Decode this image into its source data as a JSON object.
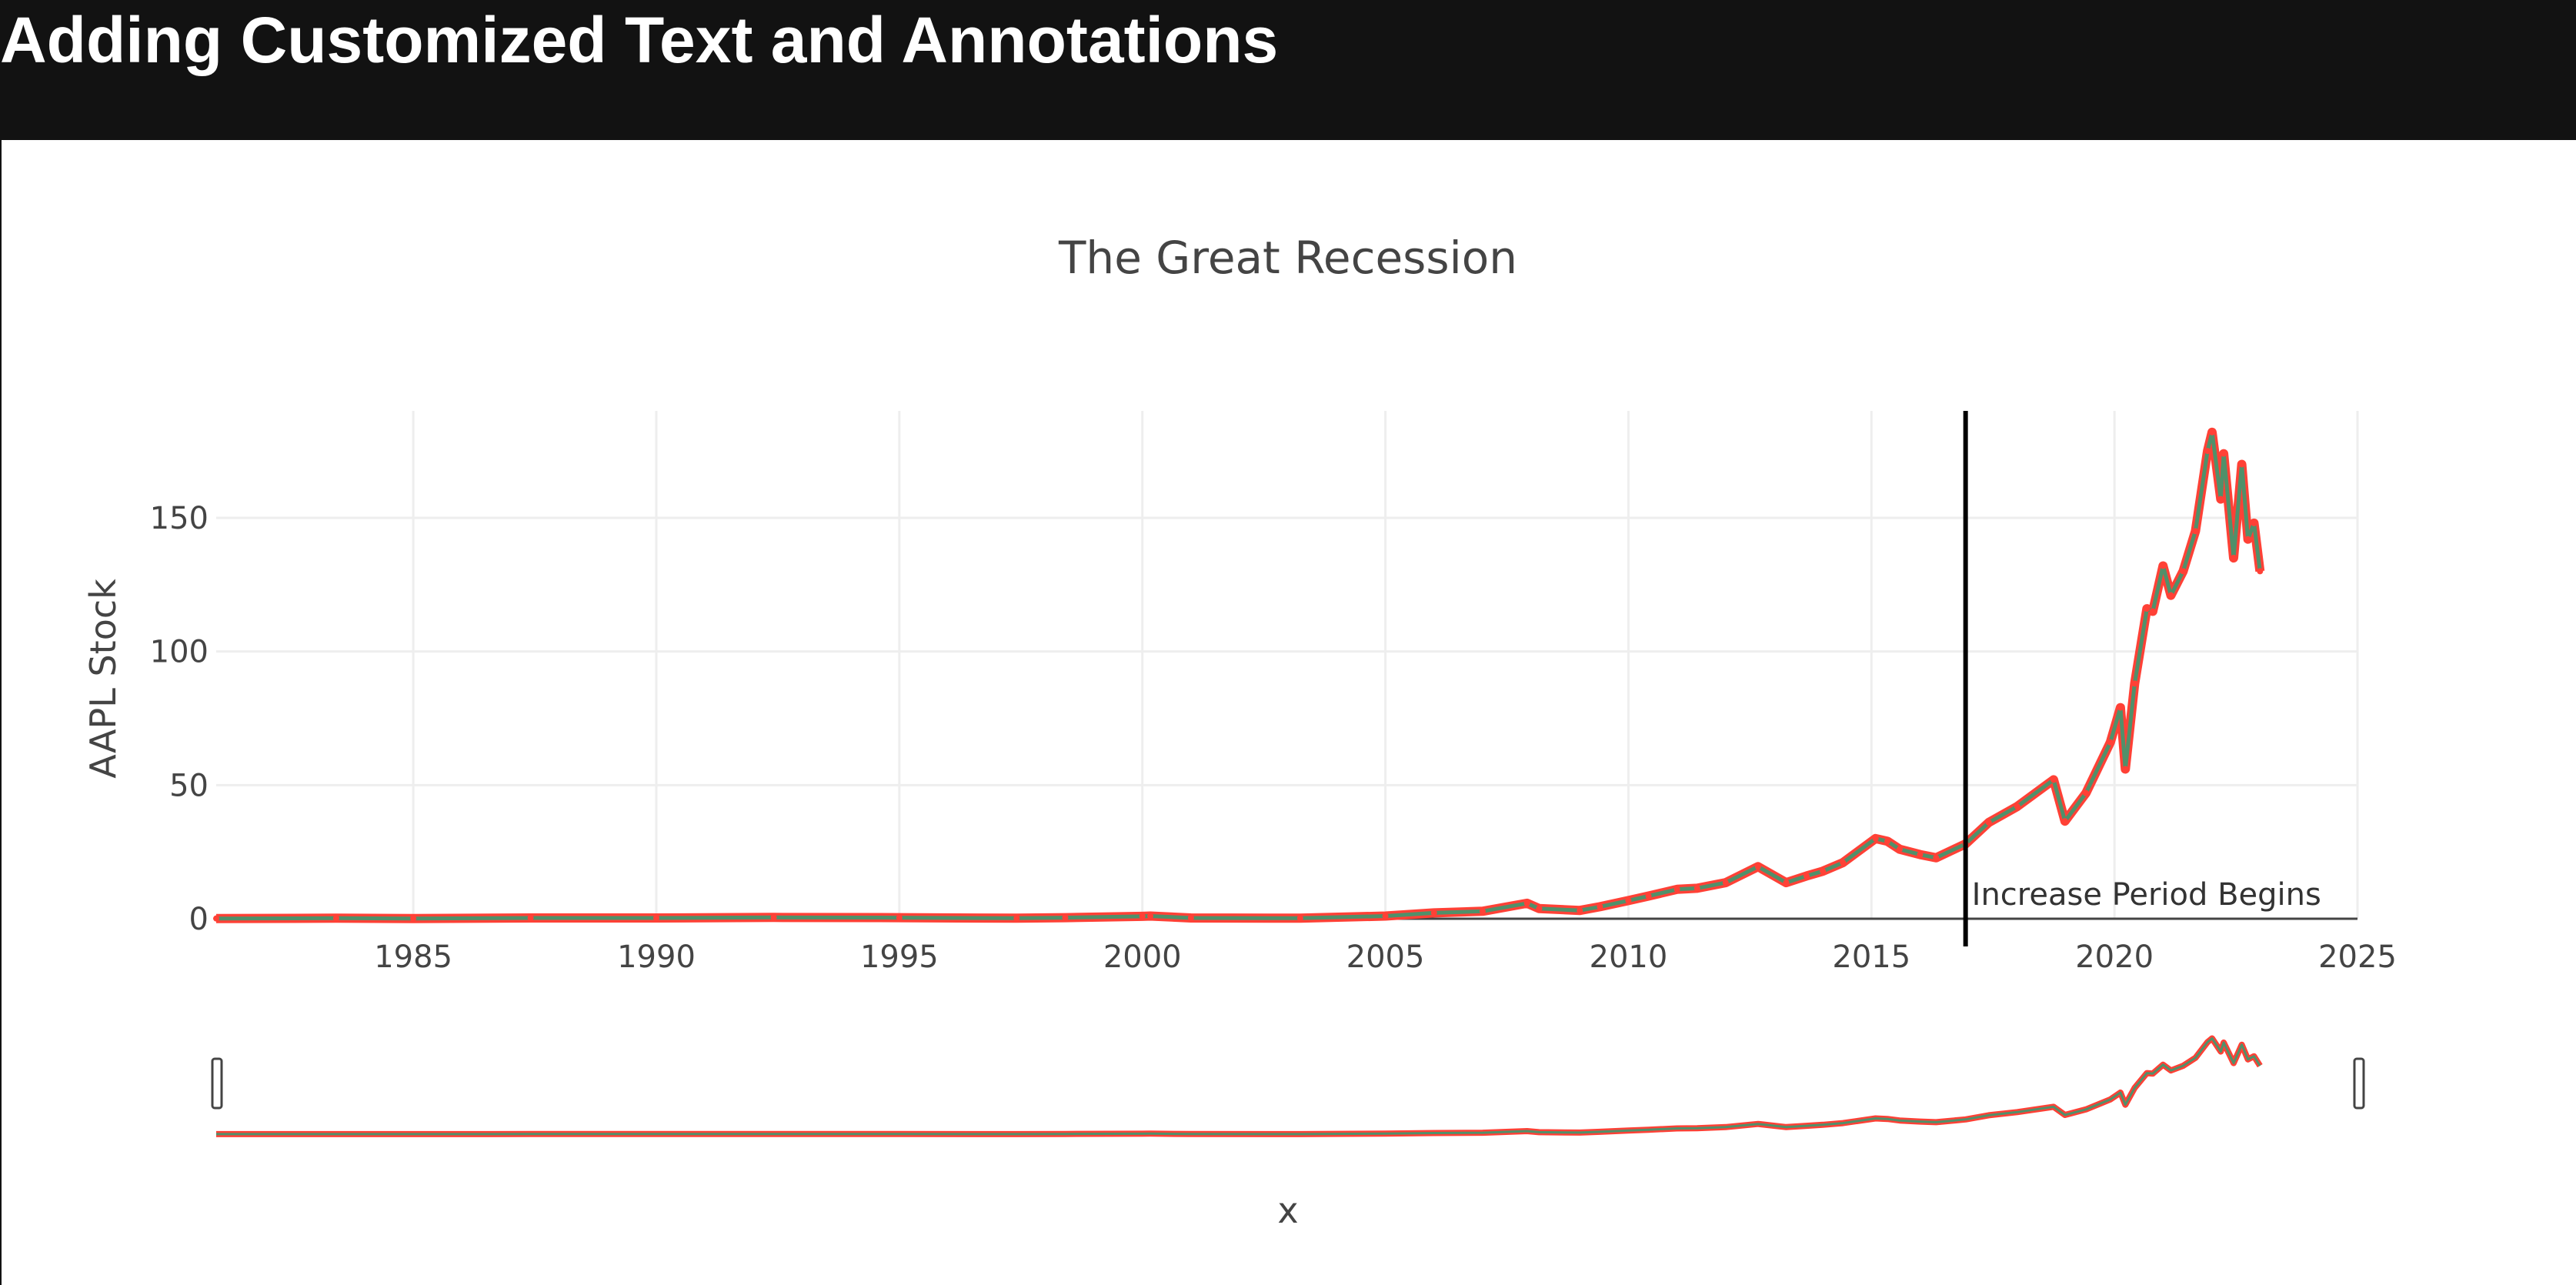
{
  "page": {
    "heading": "Adding Customized Text and Annotations"
  },
  "chart_data": {
    "type": "line",
    "title": "The Great Recession",
    "xlabel": "x",
    "ylabel": "AAPL Stock",
    "x_type": "date",
    "xlim": [
      "1980-12-12",
      "2025-01-01"
    ],
    "ylim": [
      0,
      190
    ],
    "x_tick_labels": [
      "1985",
      "1990",
      "1995",
      "2000",
      "2005",
      "2010",
      "2015",
      "2020",
      "2025"
    ],
    "y_tick_labels": [
      "0",
      "50",
      "100",
      "150"
    ],
    "y_ticks": [
      0,
      50,
      100,
      150
    ],
    "grid": true,
    "legend": "none",
    "rangeslider": true,
    "colors": {
      "increasing": "#3d9970",
      "decreasing": "#ff4136",
      "vline": "#000000",
      "grid": "#eeeeee",
      "zero_line": "#444444"
    },
    "vline": {
      "x": "2016-12-09"
    },
    "annotation": {
      "text": "Increase Period Begins",
      "x": "2016-12-09",
      "y": 0
    },
    "series": [
      {
        "x": [
          "1980-12-12",
          "1983-06-01",
          "1985-01-01",
          "1987-06-01",
          "1990-01-01",
          "1992-06-01",
          "1995-01-01",
          "1997-06-01",
          "1998-06-01",
          "2000-01-01",
          "2000-03-01",
          "2001-01-01",
          "2003-04-01",
          "2005-01-01",
          "2006-01-01",
          "2007-01-01",
          "2007-12-01",
          "2008-03-01",
          "2009-01-01",
          "2009-06-01",
          "2010-01-01",
          "2010-06-01",
          "2011-01-01",
          "2011-06-01",
          "2012-01-01",
          "2012-09-01",
          "2013-04-01",
          "2013-09-01",
          "2014-01-01",
          "2014-06-01",
          "2015-02-01",
          "2015-05-01",
          "2015-08-01",
          "2016-01-01",
          "2016-05-01",
          "2016-12-09",
          "2017-06-01",
          "2018-01-01",
          "2018-10-01",
          "2018-12-25",
          "2019-06-01",
          "2019-12-01",
          "2020-02-15",
          "2020-03-23",
          "2020-06-01",
          "2020-09-01",
          "2020-10-15",
          "2021-01-01",
          "2021-03-01",
          "2021-06-01",
          "2021-09-01",
          "2021-12-01",
          "2022-01-04",
          "2022-03-10",
          "2022-04-01",
          "2022-06-15",
          "2022-08-15",
          "2022-09-30",
          "2022-11-15",
          "2022-12-30"
        ],
        "y": [
          0.1,
          0.2,
          0.1,
          0.3,
          0.3,
          0.5,
          0.4,
          0.2,
          0.4,
          0.9,
          1.0,
          0.3,
          0.2,
          1.0,
          2.2,
          2.8,
          5.8,
          3.8,
          3.1,
          4.5,
          6.8,
          8.5,
          11.0,
          11.4,
          13.5,
          19.5,
          13.5,
          16.0,
          17.8,
          21.0,
          30.0,
          29.0,
          26.0,
          24.0,
          22.8,
          28.0,
          36.0,
          42.0,
          52.0,
          36.5,
          47.0,
          66.0,
          79.0,
          56.0,
          88.0,
          116.0,
          115.0,
          132.0,
          121.0,
          130.0,
          145.0,
          175.0,
          182.0,
          157.0,
          174.0,
          135.0,
          170.0,
          142.0,
          148.0,
          130.0
        ]
      }
    ]
  }
}
